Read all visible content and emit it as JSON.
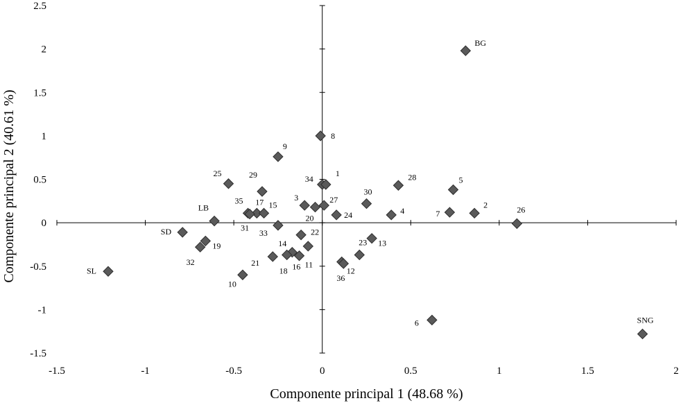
{
  "chart_data": {
    "type": "scatter",
    "xlabel": "Componente principal 1 (48.68 %)",
    "ylabel": "Componente principal 2 (40.61 %)",
    "xlim": [
      -1.5,
      2
    ],
    "ylim": [
      -1.5,
      2.5
    ],
    "xticks": [
      -1.5,
      -1,
      -0.5,
      0,
      0.5,
      1,
      1.5,
      2
    ],
    "yticks": [
      -1.5,
      -1,
      -0.5,
      0,
      0.5,
      1,
      1.5,
      2,
      2.5
    ],
    "xtick_labels": [
      "-1.5",
      "-1",
      "-0.5",
      "0",
      "0.5",
      "1",
      "1.5",
      "2"
    ],
    "ytick_labels": [
      "-1.5",
      "-1",
      "-0.5",
      "0",
      "0.5",
      "1",
      "1.5",
      "2",
      "2.5"
    ],
    "grid": false,
    "marker": "diamond",
    "marker_color": "#5a5a5a",
    "points": [
      {
        "label": "BG",
        "x": 0.81,
        "y": 1.98
      },
      {
        "label": "8",
        "x": -0.01,
        "y": 1.0
      },
      {
        "label": "9",
        "x": -0.25,
        "y": 0.76
      },
      {
        "label": "25",
        "x": -0.53,
        "y": 0.45
      },
      {
        "label": "29",
        "x": -0.34,
        "y": 0.36
      },
      {
        "label": "34",
        "x": 0.0,
        "y": 0.44
      },
      {
        "label": "1",
        "x": 0.02,
        "y": 0.44
      },
      {
        "label": "28",
        "x": 0.43,
        "y": 0.43
      },
      {
        "label": "5",
        "x": 0.74,
        "y": 0.38
      },
      {
        "label": "30",
        "x": 0.25,
        "y": 0.22
      },
      {
        "label": "3",
        "x": -0.1,
        "y": 0.2
      },
      {
        "label": "27",
        "x": 0.01,
        "y": 0.2
      },
      {
        "label": "20",
        "x": -0.04,
        "y": 0.18
      },
      {
        "label": "35",
        "x": -0.42,
        "y": 0.11
      },
      {
        "label": "17",
        "x": -0.37,
        "y": 0.11
      },
      {
        "label": "15",
        "x": -0.33,
        "y": 0.11
      },
      {
        "label": "31",
        "x": -0.41,
        "y": 0.1
      },
      {
        "label": "24",
        "x": 0.08,
        "y": 0.09
      },
      {
        "label": "4",
        "x": 0.39,
        "y": 0.09
      },
      {
        "label": "7",
        "x": 0.72,
        "y": 0.12
      },
      {
        "label": "2",
        "x": 0.86,
        "y": 0.11
      },
      {
        "label": "26",
        "x": 1.1,
        "y": -0.01
      },
      {
        "label": "LB",
        "x": -0.61,
        "y": 0.02
      },
      {
        "label": "33",
        "x": -0.25,
        "y": -0.03
      },
      {
        "label": "22",
        "x": -0.12,
        "y": -0.14
      },
      {
        "label": "14",
        "x": -0.08,
        "y": -0.27
      },
      {
        "label": "13",
        "x": 0.28,
        "y": -0.18
      },
      {
        "label": "SD",
        "x": -0.79,
        "y": -0.11
      },
      {
        "label": "19",
        "x": -0.66,
        "y": -0.21
      },
      {
        "label": "32",
        "x": -0.69,
        "y": -0.28
      },
      {
        "label": "11",
        "x": -0.13,
        "y": -0.38
      },
      {
        "label": "16",
        "x": -0.17,
        "y": -0.34
      },
      {
        "label": "18",
        "x": -0.2,
        "y": -0.37
      },
      {
        "label": "21",
        "x": -0.28,
        "y": -0.39
      },
      {
        "label": "23",
        "x": 0.21,
        "y": -0.37
      },
      {
        "label": "12",
        "x": 0.11,
        "y": -0.45
      },
      {
        "label": "36",
        "x": 0.12,
        "y": -0.47
      },
      {
        "label": "10",
        "x": -0.45,
        "y": -0.6
      },
      {
        "label": "SL",
        "x": -1.21,
        "y": -0.56
      },
      {
        "label": "6",
        "x": 0.62,
        "y": -1.12
      },
      {
        "label": "SNG",
        "x": 1.81,
        "y": -1.28
      }
    ]
  }
}
